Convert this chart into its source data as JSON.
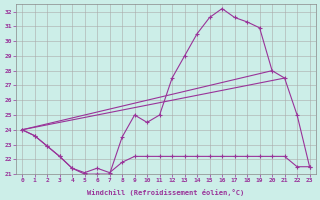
{
  "xlabel": "Windchill (Refroidissement éolien,°C)",
  "background_color": "#cceee8",
  "grid_color": "#aaaaaa",
  "line_color": "#993399",
  "ylim": [
    21,
    32.5
  ],
  "xlim": [
    -0.5,
    23.5
  ],
  "yticks": [
    21,
    22,
    23,
    24,
    25,
    26,
    27,
    28,
    29,
    30,
    31,
    32
  ],
  "xticks": [
    0,
    1,
    2,
    3,
    4,
    5,
    6,
    7,
    8,
    9,
    10,
    11,
    12,
    13,
    14,
    15,
    16,
    17,
    18,
    19,
    20,
    21,
    22,
    23
  ],
  "series1_x": [
    0,
    1,
    2,
    3,
    4,
    5,
    6,
    7,
    8,
    9,
    10,
    11,
    12,
    13,
    14,
    15,
    16,
    17,
    18,
    19,
    20,
    21,
    22,
    23
  ],
  "series1_y": [
    24.0,
    23.6,
    22.9,
    22.2,
    21.4,
    21.0,
    21.0,
    21.0,
    23.5,
    25.0,
    24.5,
    25.0,
    27.5,
    29.0,
    30.5,
    31.6,
    32.2,
    31.6,
    31.3,
    30.9,
    28.0,
    27.5,
    25.0,
    21.5
  ],
  "series2_x": [
    0,
    1,
    2,
    3,
    4,
    5,
    6,
    7,
    8,
    9,
    10,
    11,
    12,
    13,
    14,
    15,
    16,
    17,
    18,
    19,
    20,
    21,
    22,
    23
  ],
  "series2_y": [
    24.0,
    23.6,
    22.9,
    22.2,
    21.4,
    21.1,
    21.4,
    21.1,
    21.8,
    22.2,
    22.2,
    22.2,
    22.2,
    22.2,
    22.2,
    22.2,
    22.2,
    22.2,
    22.2,
    22.2,
    22.2,
    22.2,
    21.5,
    21.5
  ],
  "series3_x": [
    0,
    20
  ],
  "series3_y": [
    24.0,
    28.0
  ],
  "series4_x": [
    0,
    21
  ],
  "series4_y": [
    24.0,
    27.5
  ]
}
